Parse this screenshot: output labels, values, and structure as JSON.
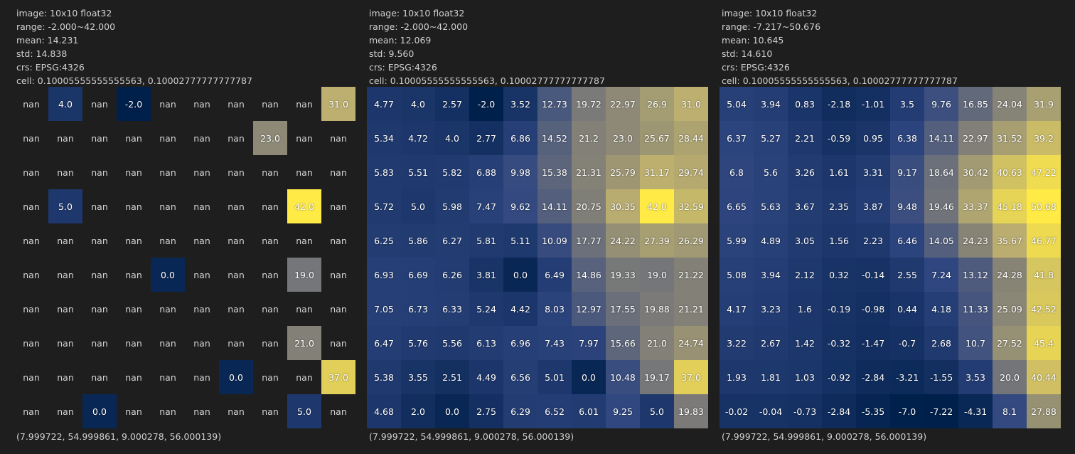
{
  "panels": [
    {
      "info": {
        "image": "image: 10x10 float32",
        "range": "range: -2.000~42.000",
        "mean": "mean: 14.231",
        "std": "std: 14.838",
        "crs": "crs: EPSG:4326",
        "cell": "cell: 0.10005555555555563, 0.10002777777777787"
      },
      "vmin": -2.0,
      "vmax": 42.0,
      "bounds": "(7.999722, 54.999861, 9.000278, 56.000139)",
      "grid": [
        [
          "nan",
          "4.0",
          "nan",
          "-2.0",
          "nan",
          "nan",
          "nan",
          "nan",
          "nan",
          "31.0"
        ],
        [
          "nan",
          "nan",
          "nan",
          "nan",
          "nan",
          "nan",
          "nan",
          "23.0",
          "nan",
          "nan"
        ],
        [
          "nan",
          "nan",
          "nan",
          "nan",
          "nan",
          "nan",
          "nan",
          "nan",
          "nan",
          "nan"
        ],
        [
          "nan",
          "5.0",
          "nan",
          "nan",
          "nan",
          "nan",
          "nan",
          "nan",
          "42.0",
          "nan"
        ],
        [
          "nan",
          "nan",
          "nan",
          "nan",
          "nan",
          "nan",
          "nan",
          "nan",
          "nan",
          "nan"
        ],
        [
          "nan",
          "nan",
          "nan",
          "nan",
          "0.0",
          "nan",
          "nan",
          "nan",
          "19.0",
          "nan"
        ],
        [
          "nan",
          "nan",
          "nan",
          "nan",
          "nan",
          "nan",
          "nan",
          "nan",
          "nan",
          "nan"
        ],
        [
          "nan",
          "nan",
          "nan",
          "nan",
          "nan",
          "nan",
          "nan",
          "nan",
          "21.0",
          "nan"
        ],
        [
          "nan",
          "nan",
          "nan",
          "nan",
          "nan",
          "nan",
          "0.0",
          "nan",
          "nan",
          "37.0"
        ],
        [
          "nan",
          "nan",
          "0.0",
          "nan",
          "nan",
          "nan",
          "nan",
          "nan",
          "5.0",
          "nan"
        ]
      ]
    },
    {
      "info": {
        "image": "image: 10x10 float32",
        "range": "range: -2.000~42.000",
        "mean": "mean: 12.069",
        "std": "std: 9.560",
        "crs": "crs: EPSG:4326",
        "cell": "cell: 0.10005555555555563, 0.10002777777777787"
      },
      "vmin": -2.0,
      "vmax": 42.0,
      "bounds": "(7.999722, 54.999861, 9.000278, 56.000139)",
      "grid": [
        [
          "4.77",
          "4.0",
          "2.57",
          "-2.0",
          "3.52",
          "12.73",
          "19.72",
          "22.97",
          "26.9",
          "31.0"
        ],
        [
          "5.34",
          "4.72",
          "4.0",
          "2.77",
          "6.86",
          "14.52",
          "21.2",
          "23.0",
          "25.67",
          "28.44"
        ],
        [
          "5.83",
          "5.51",
          "5.82",
          "6.88",
          "9.98",
          "15.38",
          "21.31",
          "25.79",
          "31.17",
          "29.74"
        ],
        [
          "5.72",
          "5.0",
          "5.98",
          "7.47",
          "9.62",
          "14.11",
          "20.75",
          "30.35",
          "42.0",
          "32.59"
        ],
        [
          "6.25",
          "5.86",
          "6.27",
          "5.81",
          "5.11",
          "10.09",
          "17.77",
          "24.22",
          "27.39",
          "26.29"
        ],
        [
          "6.93",
          "6.69",
          "6.26",
          "3.81",
          "0.0",
          "6.49",
          "14.86",
          "19.33",
          "19.0",
          "21.22"
        ],
        [
          "7.05",
          "6.73",
          "6.33",
          "5.24",
          "4.42",
          "8.03",
          "12.97",
          "17.55",
          "19.88",
          "21.21"
        ],
        [
          "6.47",
          "5.76",
          "5.56",
          "6.13",
          "6.96",
          "7.43",
          "7.97",
          "15.66",
          "21.0",
          "24.74"
        ],
        [
          "5.38",
          "3.55",
          "2.51",
          "4.49",
          "6.56",
          "5.01",
          "0.0",
          "10.48",
          "19.17",
          "37.0"
        ],
        [
          "4.68",
          "2.0",
          "0.0",
          "2.75",
          "6.29",
          "6.52",
          "6.01",
          "9.25",
          "5.0",
          "19.83"
        ]
      ]
    },
    {
      "info": {
        "image": "image: 10x10 float32",
        "range": "range: -7.217~50.676",
        "mean": "mean: 10.645",
        "std": "std: 14.610",
        "crs": "crs: EPSG:4326",
        "cell": "cell: 0.10005555555555563, 0.10002777777777787"
      },
      "vmin": -7.217,
      "vmax": 50.676,
      "bounds": "(7.999722, 54.999861, 9.000278, 56.000139)",
      "grid": [
        [
          "5.04",
          "3.94",
          "0.83",
          "-2.18",
          "-1.01",
          "3.5",
          "9.76",
          "16.85",
          "24.04",
          "31.9"
        ],
        [
          "6.37",
          "5.27",
          "2.21",
          "-0.59",
          "0.95",
          "6.38",
          "14.11",
          "22.97",
          "31.52",
          "39.2"
        ],
        [
          "6.8",
          "5.6",
          "3.26",
          "1.61",
          "3.31",
          "9.17",
          "18.64",
          "30.42",
          "40.63",
          "47.22"
        ],
        [
          "6.65",
          "5.63",
          "3.67",
          "2.35",
          "3.87",
          "9.48",
          "19.46",
          "33.37",
          "45.18",
          "50.68"
        ],
        [
          "5.99",
          "4.89",
          "3.05",
          "1.56",
          "2.23",
          "6.46",
          "14.05",
          "24.23",
          "35.67",
          "46.77"
        ],
        [
          "5.08",
          "3.94",
          "2.12",
          "0.32",
          "-0.14",
          "2.55",
          "7.24",
          "13.12",
          "24.28",
          "41.8"
        ],
        [
          "4.17",
          "3.23",
          "1.6",
          "-0.19",
          "-0.98",
          "0.44",
          "4.18",
          "11.33",
          "25.09",
          "42.52"
        ],
        [
          "3.22",
          "2.67",
          "1.42",
          "-0.32",
          "-1.47",
          "-0.7",
          "2.68",
          "10.7",
          "27.52",
          "45.4"
        ],
        [
          "1.93",
          "1.81",
          "1.03",
          "-0.92",
          "-2.84",
          "-3.21",
          "-1.55",
          "3.53",
          "20.0",
          "40.44"
        ],
        [
          "-0.02",
          "-0.04",
          "-0.73",
          "-2.84",
          "-5.35",
          "-7.0",
          "-7.22",
          "-4.31",
          "8.1",
          "27.88"
        ]
      ]
    }
  ]
}
